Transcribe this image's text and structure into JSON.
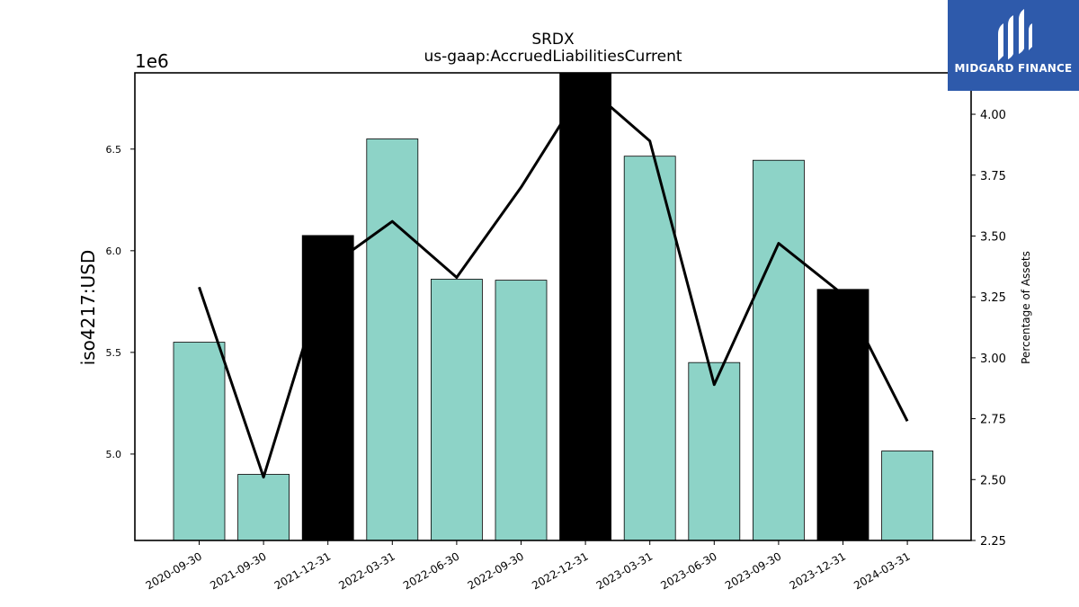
{
  "ticker": "SRDX",
  "subtitle": "us-gaap:AccruedLiabilitiesCurrent",
  "brand": {
    "name": "MIDGARD FINANCE",
    "color": "#2e5aab"
  },
  "colors": {
    "bar_default": "#8dd3c7",
    "bar_highlight": "#000000",
    "line": "#000000"
  },
  "chart_data": {
    "type": "bar",
    "title": "SRDX",
    "subtitle": "us-gaap:AccruedLiabilitiesCurrent",
    "ylabel": "iso4217:USD",
    "y_offset_label": "1e6",
    "y2label": "Percentage of Assets",
    "categories": [
      "2020-09-30",
      "2021-09-30",
      "2021-12-31",
      "2022-03-31",
      "2022-06-30",
      "2022-09-30",
      "2022-12-31",
      "2023-03-31",
      "2023-06-30",
      "2023-09-30",
      "2023-12-31",
      "2024-03-31"
    ],
    "ylim": [
      4.575,
      6.875
    ],
    "yticks": [
      "5.0",
      "5.5",
      "6.0",
      "6.5"
    ],
    "y2lim": [
      2.25,
      4.17
    ],
    "y2ticks": [
      "2.25",
      "2.50",
      "2.75",
      "3.00",
      "3.25",
      "3.50",
      "3.75",
      "4.00"
    ],
    "series": [
      {
        "kind": "bar",
        "axis": "left",
        "unit_scale": "1e6",
        "values": [
          5.55,
          4.9,
          6.075,
          6.55,
          5.86,
          5.855,
          6.885,
          6.465,
          5.45,
          6.445,
          5.81,
          5.015
        ],
        "highlight": [
          false,
          false,
          true,
          false,
          false,
          false,
          true,
          false,
          false,
          false,
          true,
          false
        ]
      },
      {
        "kind": "line",
        "axis": "right",
        "values": [
          3.29,
          2.51,
          3.37,
          3.56,
          3.33,
          3.7,
          4.12,
          3.89,
          2.89,
          3.47,
          3.26,
          2.74
        ]
      }
    ]
  }
}
